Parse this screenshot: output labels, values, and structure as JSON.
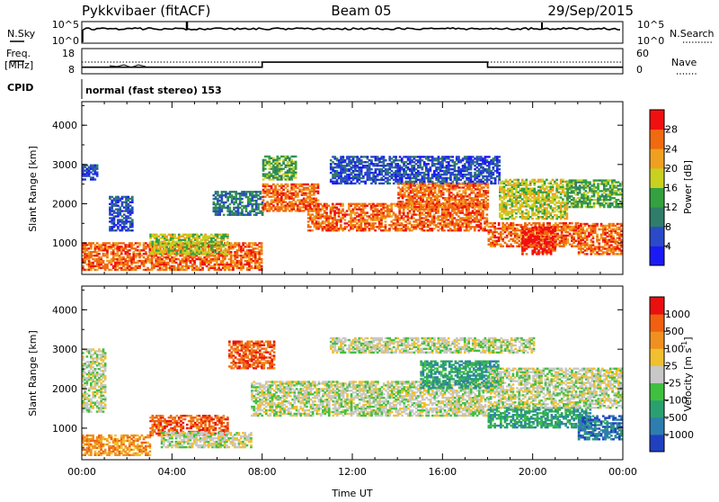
{
  "header": {
    "radar": "Pykkvibaer (fitACF)",
    "beam": "Beam 05",
    "date": "29/Sep/2015"
  },
  "nsky_panel": {
    "left_label": "N.Sky",
    "right_label": "N.Search",
    "left_ticks": [
      "10^5",
      "10^0"
    ],
    "right_ticks": [
      "10^5",
      "10^0"
    ]
  },
  "freq_panel": {
    "left_label_1": "Freq.",
    "left_label_2": "[MHz]",
    "right_label": "Nave",
    "left_ticks": [
      "18",
      "8"
    ],
    "right_ticks": [
      "60",
      "0"
    ],
    "freq_mhz": [
      {
        "t": 0,
        "v": 10.6
      },
      {
        "t": 8,
        "v": 10.6
      },
      {
        "t": 8,
        "v": 12.6
      },
      {
        "t": 18,
        "v": 12.6
      },
      {
        "t": 18,
        "v": 10.6
      },
      {
        "t": 24,
        "v": 10.6
      }
    ],
    "nave_level": 30
  },
  "cpid": {
    "label": "CPID",
    "text": "normal (fast stereo) 153"
  },
  "chart_data": [
    {
      "type": "heatmap",
      "name": "Power",
      "ylabel": "Slant Range [km]",
      "xlabel": "Time UT",
      "xlim": [
        0,
        24
      ],
      "ylim": [
        200,
        4600
      ],
      "yticks": [
        "1000",
        "2000",
        "3000",
        "4000"
      ],
      "xticks": [
        "00:00",
        "04:00",
        "08:00",
        "12:00",
        "16:00",
        "20:00",
        "00:00"
      ],
      "colorbar": {
        "label": "Power [dB]",
        "ticks": [
          "4",
          "8",
          "12",
          "16",
          "20",
          "24",
          "28"
        ],
        "colors": [
          "#1a1af5",
          "#2b4ac8",
          "#2f7d6a",
          "#34a040",
          "#c8d020",
          "#f0a020",
          "#f06a10",
          "#f01010"
        ]
      },
      "regions": [
        {
          "t0": 0.0,
          "t1": 8.0,
          "r0": 300,
          "r1": 1000,
          "level": 6
        },
        {
          "t0": 3.0,
          "t1": 6.5,
          "r0": 700,
          "r1": 1200,
          "level": 4
        },
        {
          "t0": 0.0,
          "t1": 0.7,
          "r0": 2600,
          "r1": 3000,
          "level": 1
        },
        {
          "t0": 1.2,
          "t1": 2.2,
          "r0": 1300,
          "r1": 2200,
          "level": 1
        },
        {
          "t0": 5.8,
          "t1": 8.0,
          "r0": 1700,
          "r1": 2300,
          "level": 2
        },
        {
          "t0": 8.0,
          "t1": 10.5,
          "r0": 1800,
          "r1": 2500,
          "level": 6
        },
        {
          "t0": 8.0,
          "t1": 9.5,
          "r0": 2600,
          "r1": 3200,
          "level": 3
        },
        {
          "t0": 10.0,
          "t1": 18.0,
          "r0": 1300,
          "r1": 2000,
          "level": 6
        },
        {
          "t0": 11.0,
          "t1": 18.5,
          "r0": 2500,
          "r1": 3200,
          "level": 1
        },
        {
          "t0": 14.0,
          "t1": 18.0,
          "r0": 1900,
          "r1": 2500,
          "level": 6
        },
        {
          "t0": 18.0,
          "t1": 22.0,
          "r0": 900,
          "r1": 1500,
          "level": 6
        },
        {
          "t0": 19.5,
          "t1": 21.0,
          "r0": 700,
          "r1": 1400,
          "level": 7
        },
        {
          "t0": 18.5,
          "t1": 21.5,
          "r0": 1600,
          "r1": 2600,
          "level": 4
        },
        {
          "t0": 22.0,
          "t1": 24.0,
          "r0": 700,
          "r1": 1500,
          "level": 6
        },
        {
          "t0": 21.5,
          "t1": 24.0,
          "r0": 1900,
          "r1": 2600,
          "level": 3
        }
      ]
    },
    {
      "type": "heatmap",
      "name": "Velocity",
      "ylabel": "Slant Range [km]",
      "xlabel": "Time UT",
      "xlim": [
        0,
        24
      ],
      "ylim": [
        200,
        4600
      ],
      "yticks": [
        "1000",
        "2000",
        "3000",
        "4000"
      ],
      "xticks": [
        "00:00",
        "04:00",
        "08:00",
        "12:00",
        "16:00",
        "20:00",
        "00:00"
      ],
      "colorbar": {
        "label": "Velocity [m s",
        "label_sup": "-1",
        "label_end": "]",
        "ticks": [
          "1000",
          "500",
          "100",
          "25",
          "-25",
          "-100",
          "-500",
          "-1000"
        ],
        "colors": [
          "#2040c0",
          "#2e7db0",
          "#2aa070",
          "#40c040",
          "#c8c8c8",
          "#f0c030",
          "#f09020",
          "#f06010",
          "#e81010"
        ]
      },
      "regions": [
        {
          "t0": 0.0,
          "t1": 3.0,
          "r0": 300,
          "r1": 800,
          "level": 6
        },
        {
          "t0": 3.0,
          "t1": 6.5,
          "r0": 800,
          "r1": 1300,
          "level": 7
        },
        {
          "t0": 0.0,
          "t1": 1.0,
          "r0": 1400,
          "r1": 3000,
          "level": 4
        },
        {
          "t0": 3.5,
          "t1": 7.5,
          "r0": 500,
          "r1": 900,
          "level": 4
        },
        {
          "t0": 6.5,
          "t1": 8.5,
          "r0": 2500,
          "r1": 3200,
          "level": 7
        },
        {
          "t0": 7.5,
          "t1": 18.0,
          "r0": 1300,
          "r1": 2200,
          "level": 4
        },
        {
          "t0": 11.0,
          "t1": 20.0,
          "r0": 2900,
          "r1": 3300,
          "level": 4
        },
        {
          "t0": 15.0,
          "t1": 18.5,
          "r0": 2000,
          "r1": 2700,
          "level": 2
        },
        {
          "t0": 18.0,
          "t1": 22.5,
          "r0": 1000,
          "r1": 1500,
          "level": 2
        },
        {
          "t0": 18.0,
          "t1": 24.0,
          "r0": 1500,
          "r1": 2500,
          "level": 4
        },
        {
          "t0": 22.0,
          "t1": 24.0,
          "r0": 700,
          "r1": 1300,
          "level": 1
        }
      ]
    }
  ]
}
